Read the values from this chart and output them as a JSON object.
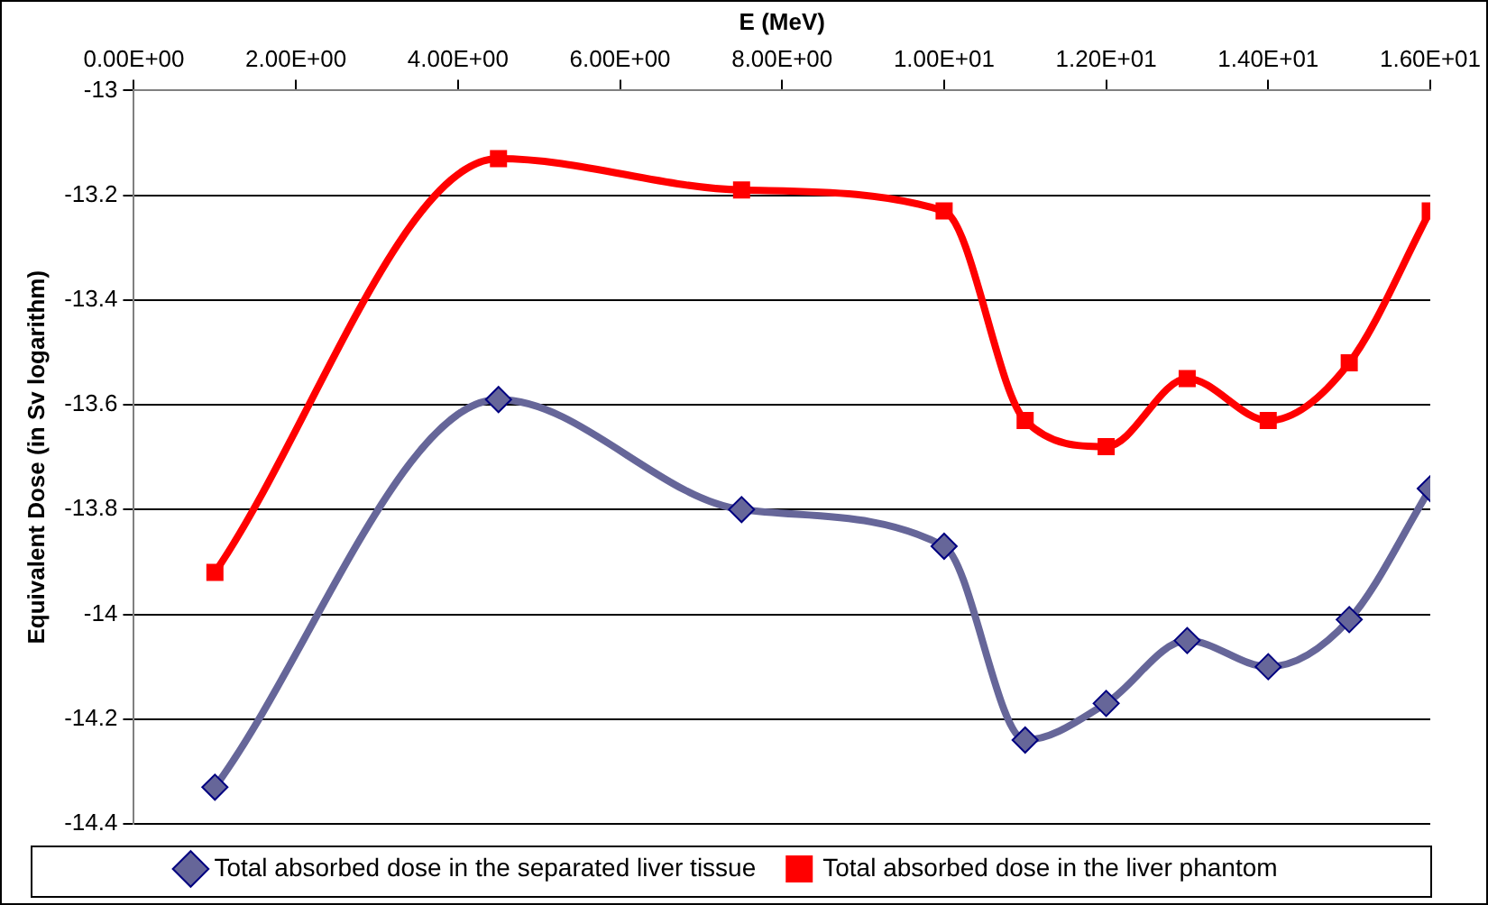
{
  "chart_data": {
    "type": "line",
    "xlabel": "E (MeV)",
    "ylabel": "Equivalent Dose (in Sv logarithm)",
    "x": [
      1,
      4.5,
      7.5,
      10,
      11,
      12,
      13,
      14,
      15,
      16
    ],
    "series": [
      {
        "name": "Total absorbed dose in the separated liver tissue",
        "color": "#666699",
        "marker": "diamond",
        "values": [
          -14.33,
          -13.59,
          -13.8,
          -13.87,
          -14.24,
          -14.17,
          -14.05,
          -14.1,
          -14.01,
          -13.76
        ]
      },
      {
        "name": "Total absorbed dose in the liver phantom",
        "color": "#ff0000",
        "marker": "square",
        "values": [
          -13.92,
          -13.13,
          -13.19,
          -13.23,
          -13.63,
          -13.68,
          -13.55,
          -13.63,
          -13.52,
          -13.23
        ]
      }
    ],
    "xlim": [
      0,
      16
    ],
    "xticks": [
      {
        "value": 0,
        "label": "0.00E+00"
      },
      {
        "value": 2,
        "label": "2.00E+00"
      },
      {
        "value": 4,
        "label": "4.00E+00"
      },
      {
        "value": 6,
        "label": "6.00E+00"
      },
      {
        "value": 8,
        "label": "8.00E+00"
      },
      {
        "value": 10,
        "label": "1.00E+01"
      },
      {
        "value": 12,
        "label": "1.20E+01"
      },
      {
        "value": 14,
        "label": "1.40E+01"
      },
      {
        "value": 16,
        "label": "1.60E+01"
      }
    ],
    "ylim": [
      -14.4,
      -13
    ],
    "yticks": [
      -14.4,
      -14.2,
      -14,
      -13.8,
      -13.6,
      -13.4,
      -13.2,
      -13
    ],
    "grid": "y",
    "legend": "bottom"
  }
}
